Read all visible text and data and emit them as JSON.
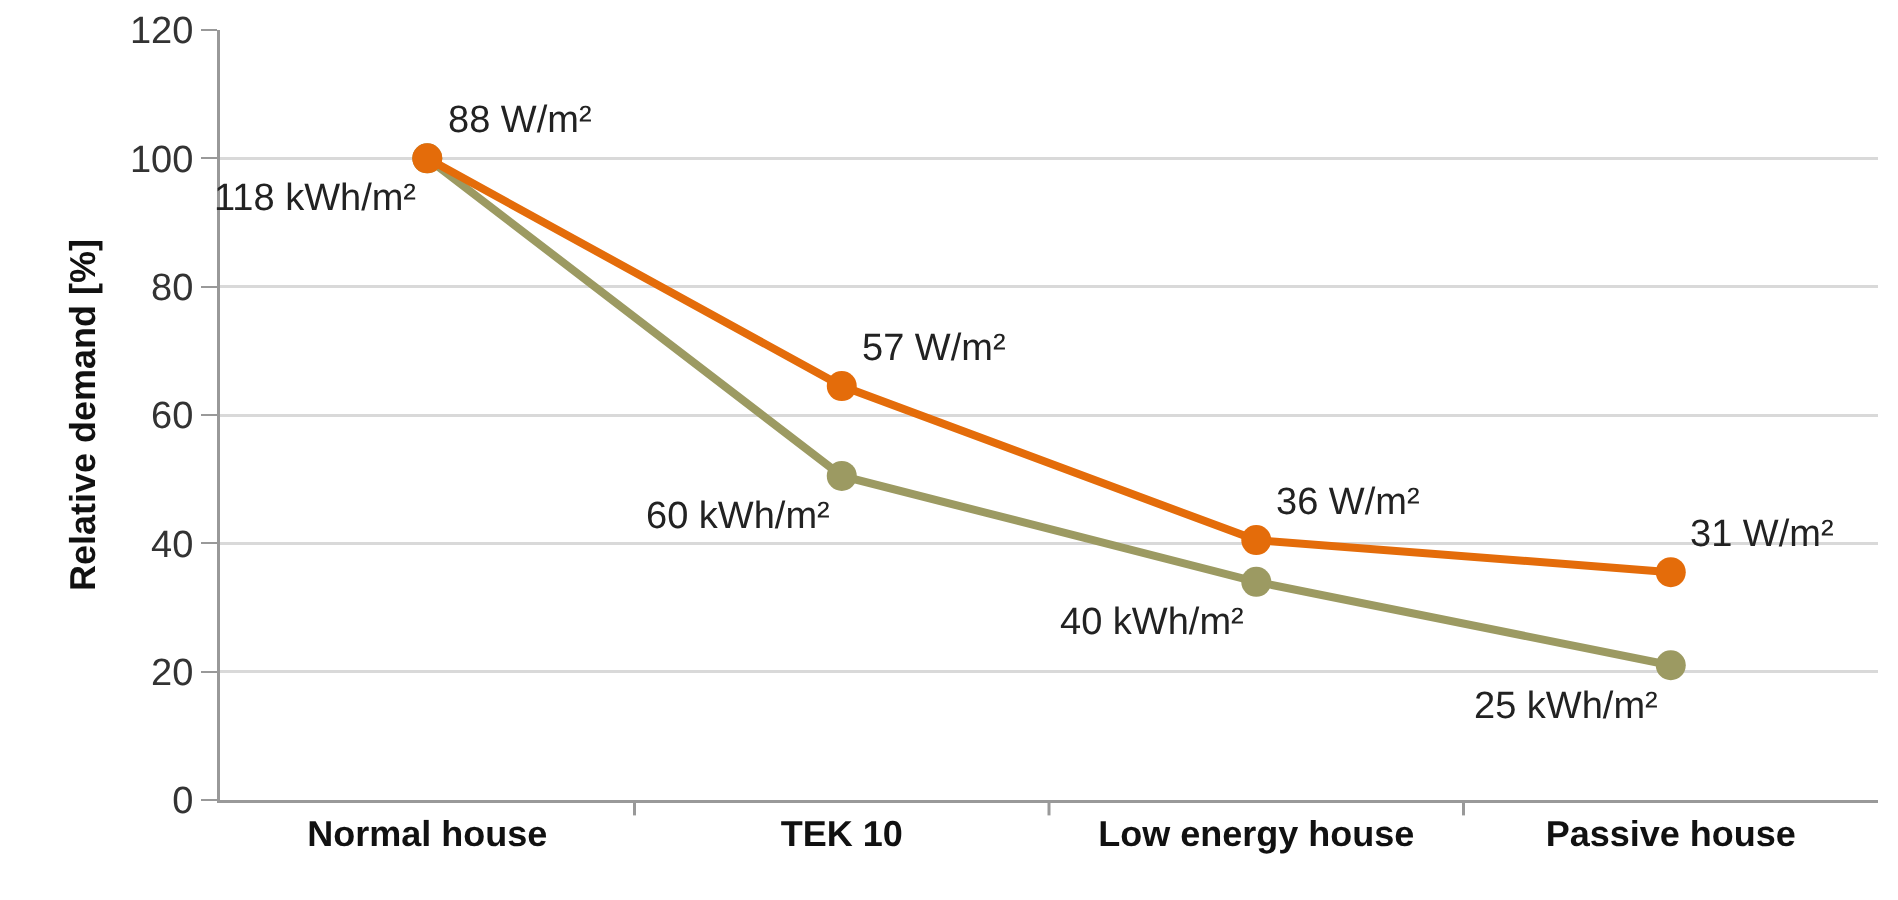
{
  "chart_data": {
    "type": "line",
    "ylabel": "Relative demand [%]",
    "categories": [
      "Normal house",
      "TEK 10",
      "Low energy house",
      "Passive house"
    ],
    "series": [
      {
        "color": "#e46c0a",
        "values": [
          100,
          64.5,
          40.5,
          35.5
        ]
      },
      {
        "color": "#9c9a62",
        "values": [
          100,
          50.5,
          34,
          21
        ]
      }
    ],
    "annotations": [
      {
        "text": "88 W/m²",
        "x": "Normal house",
        "y": 100
      },
      {
        "text": "57 W/m²",
        "x": "TEK 10",
        "y": 64.5
      },
      {
        "text": "36 W/m²",
        "x": "Low energy house",
        "y": 40.5
      },
      {
        "text": "31 W/m²",
        "x": "Passive house",
        "y": 35.5
      },
      {
        "text": "118 kWh/m²",
        "x": "Normal house",
        "y": 100
      },
      {
        "text": "60 kWh/m²",
        "x": "TEK 10",
        "y": 50.5
      },
      {
        "text": "40 kWh/m²",
        "x": "Low energy house",
        "y": 34
      },
      {
        "text": "25 kWh/m²",
        "x": "Passive house",
        "y": 21
      }
    ],
    "ylim": [
      0,
      120
    ],
    "yticks": [
      0,
      20,
      40,
      60,
      80,
      100,
      120
    ],
    "grid": "y",
    "marker": "circle",
    "line_style": "solid"
  }
}
